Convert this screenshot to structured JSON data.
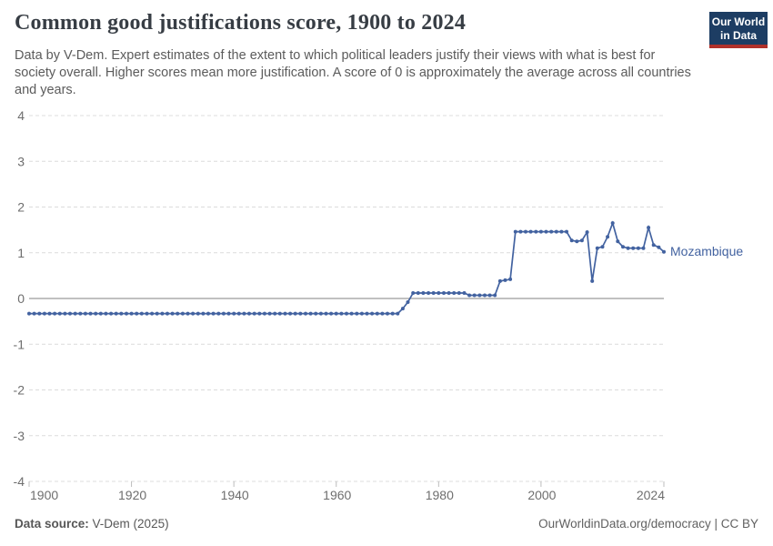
{
  "header": {
    "title": "Common good justifications score, 1900 to 2024",
    "subtitle": "Data by V-Dem. Expert estimates of the extent to which political leaders justify their views with what is best for society overall. Higher scores mean more justification. A score of 0 is approximately the average across all countries and years.",
    "logo_line1": "Our World",
    "logo_line2": "in Data",
    "logo_bg_color": "#1d3d63",
    "logo_accent_color": "#b0312a"
  },
  "chart_data": {
    "type": "line",
    "title": "Common good justifications score, 1900 to 2024",
    "x_range": [
      1900,
      2024
    ],
    "xticks": [
      1900,
      1920,
      1940,
      1960,
      1980,
      2000,
      2024
    ],
    "ylim": [
      -4,
      4
    ],
    "yticks": [
      -4,
      -3,
      -2,
      -1,
      0,
      1,
      2,
      3,
      4
    ],
    "grid": "horizontal-dashed",
    "zero_line": true,
    "legend_position": "line-end",
    "series": [
      {
        "name": "Mozambique",
        "color": "#4262a0",
        "start_year": 1900,
        "values": [
          -0.33,
          -0.33,
          -0.33,
          -0.33,
          -0.33,
          -0.33,
          -0.33,
          -0.33,
          -0.33,
          -0.33,
          -0.33,
          -0.33,
          -0.33,
          -0.33,
          -0.33,
          -0.33,
          -0.33,
          -0.33,
          -0.33,
          -0.33,
          -0.33,
          -0.33,
          -0.33,
          -0.33,
          -0.33,
          -0.33,
          -0.33,
          -0.33,
          -0.33,
          -0.33,
          -0.33,
          -0.33,
          -0.33,
          -0.33,
          -0.33,
          -0.33,
          -0.33,
          -0.33,
          -0.33,
          -0.33,
          -0.33,
          -0.33,
          -0.33,
          -0.33,
          -0.33,
          -0.33,
          -0.33,
          -0.33,
          -0.33,
          -0.33,
          -0.33,
          -0.33,
          -0.33,
          -0.33,
          -0.33,
          -0.33,
          -0.33,
          -0.33,
          -0.33,
          -0.33,
          -0.33,
          -0.33,
          -0.33,
          -0.33,
          -0.33,
          -0.33,
          -0.33,
          -0.33,
          -0.33,
          -0.33,
          -0.33,
          -0.33,
          -0.33,
          -0.22,
          -0.08,
          0.12,
          0.12,
          0.12,
          0.12,
          0.12,
          0.12,
          0.12,
          0.12,
          0.12,
          0.12,
          0.12,
          0.07,
          0.07,
          0.07,
          0.07,
          0.07,
          0.07,
          0.38,
          0.4,
          0.42,
          1.46,
          1.46,
          1.46,
          1.46,
          1.46,
          1.46,
          1.46,
          1.46,
          1.46,
          1.46,
          1.46,
          1.27,
          1.25,
          1.27,
          1.45,
          0.38,
          1.1,
          1.13,
          1.35,
          1.65,
          1.25,
          1.13,
          1.1,
          1.1,
          1.1,
          1.1,
          1.55,
          1.17,
          1.12,
          1.02
        ]
      }
    ]
  },
  "footer": {
    "source_label": "Data source:",
    "source_value": "V-Dem (2025)",
    "url": "OurWorldinData.org/democracy",
    "separator": " | ",
    "license": "CC BY"
  }
}
